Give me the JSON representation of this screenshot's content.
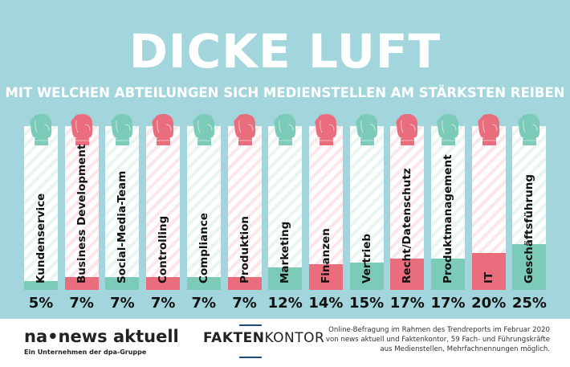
{
  "chart_data": {
    "type": "bar",
    "title": "DICKE LUFT",
    "subtitle": "MIT WELCHEN ABTEILUNGEN SICH MEDIENSTELLEN AM STÄRKSTEN REIBEN",
    "categories": [
      "Kundenservice",
      "Business Development",
      "Social-Media-Team",
      "Controlling",
      "Compliance",
      "Produktion",
      "Marketing",
      "Finanzen",
      "Vertrieb",
      "Recht/Datenschutz",
      "Produktmanagement",
      "IT",
      "Geschäftsführung"
    ],
    "values": [
      5,
      7,
      7,
      7,
      7,
      7,
      12,
      14,
      15,
      17,
      17,
      20,
      25
    ],
    "value_labels": [
      "5%",
      "7%",
      "7%",
      "7%",
      "7%",
      "7%",
      "12%",
      "14%",
      "15%",
      "17%",
      "17%",
      "20%",
      "25%"
    ],
    "unit": "%",
    "ylim": [
      0,
      100
    ],
    "grid": false,
    "colors": {
      "teal": "#7ccab8",
      "pink": "#e96d7d",
      "background": "#a3d6dc"
    },
    "icon": "boxing-glove-icon"
  },
  "footer": {
    "logo_na": "na•news aktuell",
    "logo_na_sub": "Ein Unternehmen der dpa-Gruppe",
    "logo_fk_bold": "FAKTEN",
    "logo_fk_light": "KONTOR",
    "note": "Online-Befragung im Rahmen des Trendreports im Februar 2020 von news aktuell und Faktenkontor, 59 Fach- und Führungskräfte aus Medienstellen, Mehrfachnennungen möglich."
  }
}
